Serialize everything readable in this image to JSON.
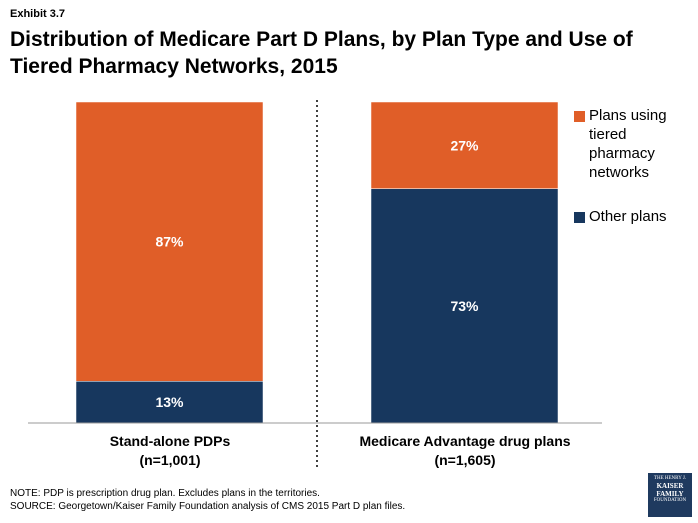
{
  "exhibit": "Exhibit 3.7",
  "title": "Distribution of Medicare Part D Plans, by Plan Type and Use of Tiered Pharmacy Networks, 2015",
  "colors": {
    "tiered": "#e05e28",
    "other": "#17375e"
  },
  "legend": {
    "tiered": "Plans using tiered pharmacy networks",
    "other": "Other plans"
  },
  "categories": [
    {
      "name": "Stand-alone PDPs",
      "n": "(n=1,001)"
    },
    {
      "name": "Medicare Advantage drug plans",
      "n": "(n=1,605)"
    }
  ],
  "chart_data": {
    "type": "bar",
    "stacked": true,
    "categories": [
      "Stand-alone PDPs",
      "Medicare Advantage drug plans"
    ],
    "series": [
      {
        "name": "Other plans",
        "values": [
          13,
          73
        ],
        "labels": [
          "13%",
          "73%"
        ]
      },
      {
        "name": "Plans using tiered pharmacy networks",
        "values": [
          87,
          27
        ],
        "labels": [
          "87%",
          "27%"
        ]
      }
    ],
    "ylim": [
      0,
      100
    ],
    "legend": "right"
  },
  "footer": {
    "note": "NOTE: PDP is prescription drug plan.  Excludes plans in the territories.",
    "source": "SOURCE: Georgetown/Kaiser Family Foundation analysis of CMS 2015 Part D plan files."
  },
  "logo": {
    "line1": "THE HENRY J.",
    "line2": "KAISER",
    "line3": "FAMILY",
    "line4": "FOUNDATION"
  }
}
